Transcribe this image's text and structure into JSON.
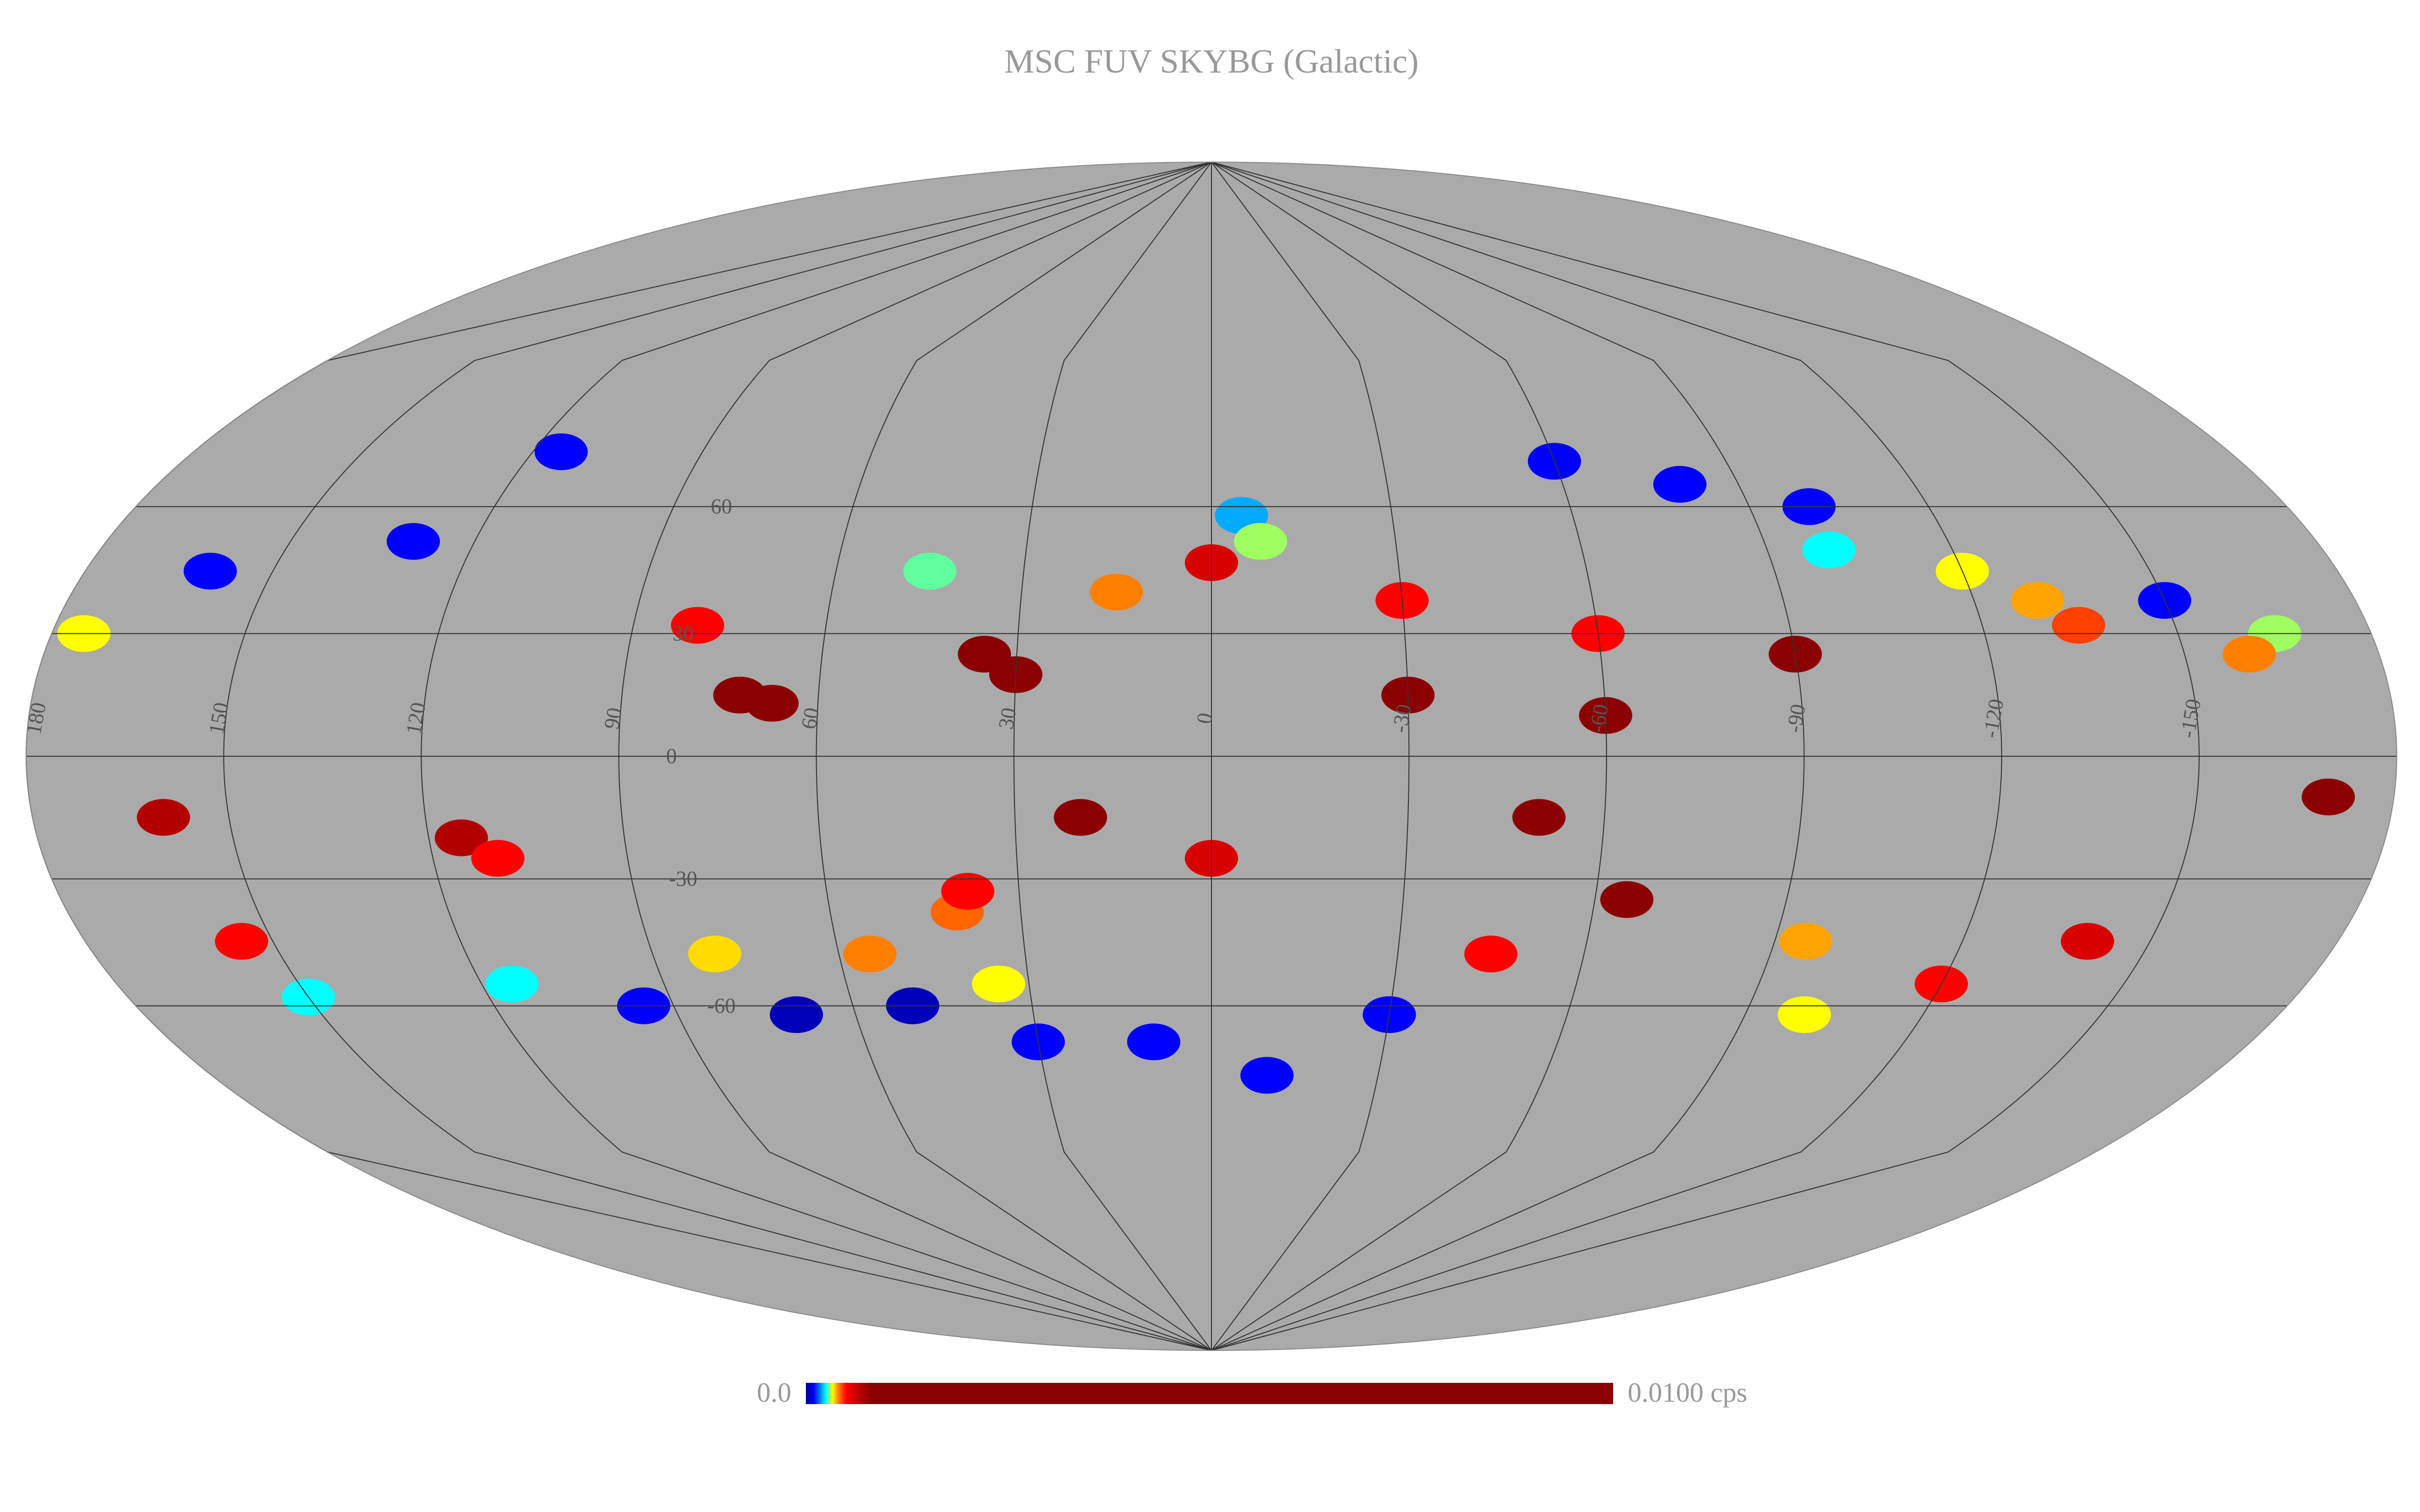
{
  "map": {
    "type": "mollweide",
    "title": "MSC FUV SKYBG (Galactic)",
    "background": "#aaaaaa",
    "grid_color": "#333333",
    "lon_ticks": [
      180,
      150,
      120,
      90,
      60,
      30,
      0,
      -30,
      -60,
      -90,
      -120,
      -150
    ],
    "lat_ticks": [
      60,
      30,
      0,
      -30,
      -60
    ],
    "colorbar": {
      "range": [
        {
          "value": 0,
          "label": "0.0"
        },
        {
          "value": 0.01,
          "label": "0.0100 cps"
        }
      ],
      "stops": [
        {
          "value": 0,
          "color": "#00008b"
        },
        {
          "value": 0.0001,
          "color": "#0000ff"
        },
        {
          "value": 0.00025,
          "color": "#00ffff"
        },
        {
          "value": 0.00033,
          "color": "#ffff00"
        },
        {
          "value": 0.0004,
          "color": "#ff8000"
        },
        {
          "value": 0.0005,
          "color": "#ff0000"
        },
        {
          "value": 0.0008,
          "color": "#8b0000"
        },
        {
          "value": 0.01,
          "color": "#8b0000"
        }
      ]
    },
    "points": [
      {
        "lon": -80,
        "lat": 65,
        "value": 0.0001
      },
      {
        "lon": -60,
        "lat": 70,
        "value": 0.0001
      },
      {
        "lon": -100,
        "lat": 60,
        "value": 0.0001
      },
      {
        "lon": -5,
        "lat": 58,
        "value": 0.0002
      },
      {
        "lon": -8,
        "lat": 52,
        "value": 0.0003
      },
      {
        "lon": 0,
        "lat": 47,
        "value": 0.0006
      },
      {
        "lon": -100,
        "lat": 50,
        "value": 0.00025
      },
      {
        "lon": -120,
        "lat": 45,
        "value": 0.00033
      },
      {
        "lon": -130,
        "lat": 38,
        "value": 0.00038
      },
      {
        "lon": -135,
        "lat": 32,
        "value": 0.00045
      },
      {
        "lon": -150,
        "lat": 38,
        "value": 0.0001
      },
      {
        "lon": -165,
        "lat": 30,
        "value": 0.0003
      },
      {
        "lon": -160,
        "lat": 25,
        "value": 0.0004
      },
      {
        "lon": 80,
        "lat": 32,
        "value": 0.0005
      },
      {
        "lon": 72,
        "lat": 15,
        "value": 0.0008
      },
      {
        "lon": 67,
        "lat": 13,
        "value": 0.0008
      },
      {
        "lon": 45,
        "lat": 45,
        "value": 0.00028
      },
      {
        "lon": 15,
        "lat": 40,
        "value": 0.0004
      },
      {
        "lon": 130,
        "lat": 52,
        "value": 0.0001
      },
      {
        "lon": 160,
        "lat": 45,
        "value": 0.0001
      },
      {
        "lon": 175,
        "lat": 30,
        "value": 0.00033
      },
      {
        "lon": 115,
        "lat": 72,
        "value": 0.0001
      },
      {
        "lon": 35,
        "lat": 25,
        "value": 0.0008
      },
      {
        "lon": -30,
        "lat": 38,
        "value": 0.0005
      },
      {
        "lon": -60,
        "lat": 30,
        "value": 0.0005
      },
      {
        "lon": 115,
        "lat": -20,
        "value": 0.0007
      },
      {
        "lon": 110,
        "lat": -25,
        "value": 0.0005
      },
      {
        "lon": 40,
        "lat": -38,
        "value": 0.00042
      },
      {
        "lon": 38,
        "lat": -33,
        "value": 0.0005
      },
      {
        "lon": 50,
        "lat": -60,
        "value": 4e-05
      },
      {
        "lon": 70,
        "lat": -62,
        "value": 4e-05
      },
      {
        "lon": 95,
        "lat": -60,
        "value": 0.0001
      },
      {
        "lon": 115,
        "lat": -55,
        "value": 0.00025
      },
      {
        "lon": 35,
        "lat": -55,
        "value": 0.00033
      },
      {
        "lon": 55,
        "lat": -48,
        "value": 0.0004
      },
      {
        "lon": 80,
        "lat": -48,
        "value": 0.00035
      },
      {
        "lon": 30,
        "lat": -68,
        "value": 0.0001
      },
      {
        "lon": 10,
        "lat": -68,
        "value": 0.0001
      },
      {
        "lon": -10,
        "lat": -75,
        "value": 0.0001
      },
      {
        "lon": -30,
        "lat": -62,
        "value": 0.0001
      },
      {
        "lon": -100,
        "lat": -62,
        "value": 0.00033
      },
      {
        "lon": -120,
        "lat": -55,
        "value": 0.0005
      },
      {
        "lon": -140,
        "lat": -45,
        "value": 0.0006
      },
      {
        "lon": -65,
        "lat": -35,
        "value": 0.0008
      },
      {
        "lon": -45,
        "lat": -48,
        "value": 0.0005
      },
      {
        "lon": -95,
        "lat": -45,
        "value": 0.00038
      },
      {
        "lon": 155,
        "lat": -45,
        "value": 0.0005
      },
      {
        "lon": 150,
        "lat": -58,
        "value": 0.00025
      },
      {
        "lon": 30,
        "lat": 20,
        "value": 0.0008
      },
      {
        "lon": -30,
        "lat": 15,
        "value": 0.0008
      },
      {
        "lon": -60,
        "lat": 10,
        "value": 0.0008
      },
      {
        "lon": -90,
        "lat": 25,
        "value": 0.0008
      },
      {
        "lon": 20,
        "lat": -15,
        "value": 0.0008
      },
      {
        "lon": -50,
        "lat": -15,
        "value": 0.0008
      },
      {
        "lon": 0,
        "lat": -25,
        "value": 0.0006
      },
      {
        "lon": -170,
        "lat": -10,
        "value": 0.0008
      },
      {
        "lon": 160,
        "lat": -15,
        "value": 0.0007
      }
    ]
  }
}
